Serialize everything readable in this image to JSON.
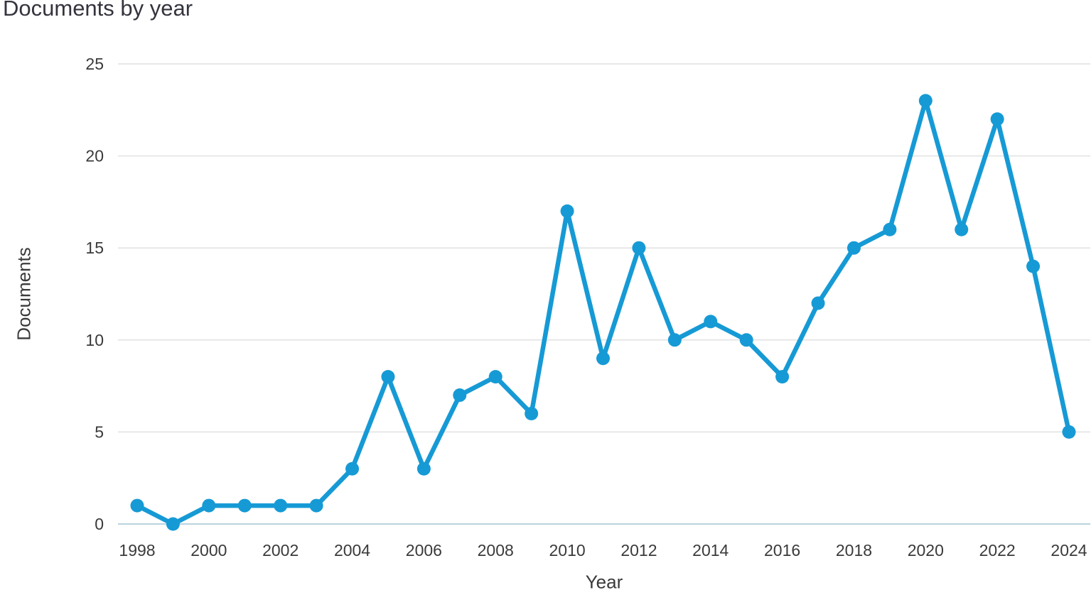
{
  "chart_data": {
    "type": "line",
    "title": "Documents by year",
    "xlabel": "Year",
    "ylabel": "Documents",
    "series_name": "Documents",
    "x": [
      1998,
      1999,
      2000,
      2001,
      2002,
      2003,
      2004,
      2005,
      2006,
      2007,
      2008,
      2009,
      2010,
      2011,
      2012,
      2013,
      2014,
      2015,
      2016,
      2017,
      2018,
      2019,
      2020,
      2021,
      2022,
      2023,
      2024
    ],
    "values": [
      1,
      0,
      1,
      1,
      1,
      1,
      3,
      8,
      3,
      7,
      8,
      6,
      17,
      9,
      15,
      10,
      11,
      10,
      8,
      12,
      15,
      16,
      23,
      16,
      22,
      14,
      5
    ],
    "ylim": [
      0,
      25
    ],
    "yticks": [
      0,
      5,
      10,
      15,
      20,
      25
    ],
    "xticks": [
      1998,
      2000,
      2002,
      2004,
      2006,
      2008,
      2010,
      2012,
      2014,
      2016,
      2018,
      2020,
      2022,
      2024
    ],
    "grid": "horizontal",
    "legend_position": "none",
    "marker": "circle"
  },
  "colors": {
    "line": "#169ad5",
    "grid": "#e1e1e1",
    "axis_baseline": "#b9d3e0",
    "text": "#3a3a3a",
    "title": "#34343e",
    "background": "#ffffff"
  }
}
